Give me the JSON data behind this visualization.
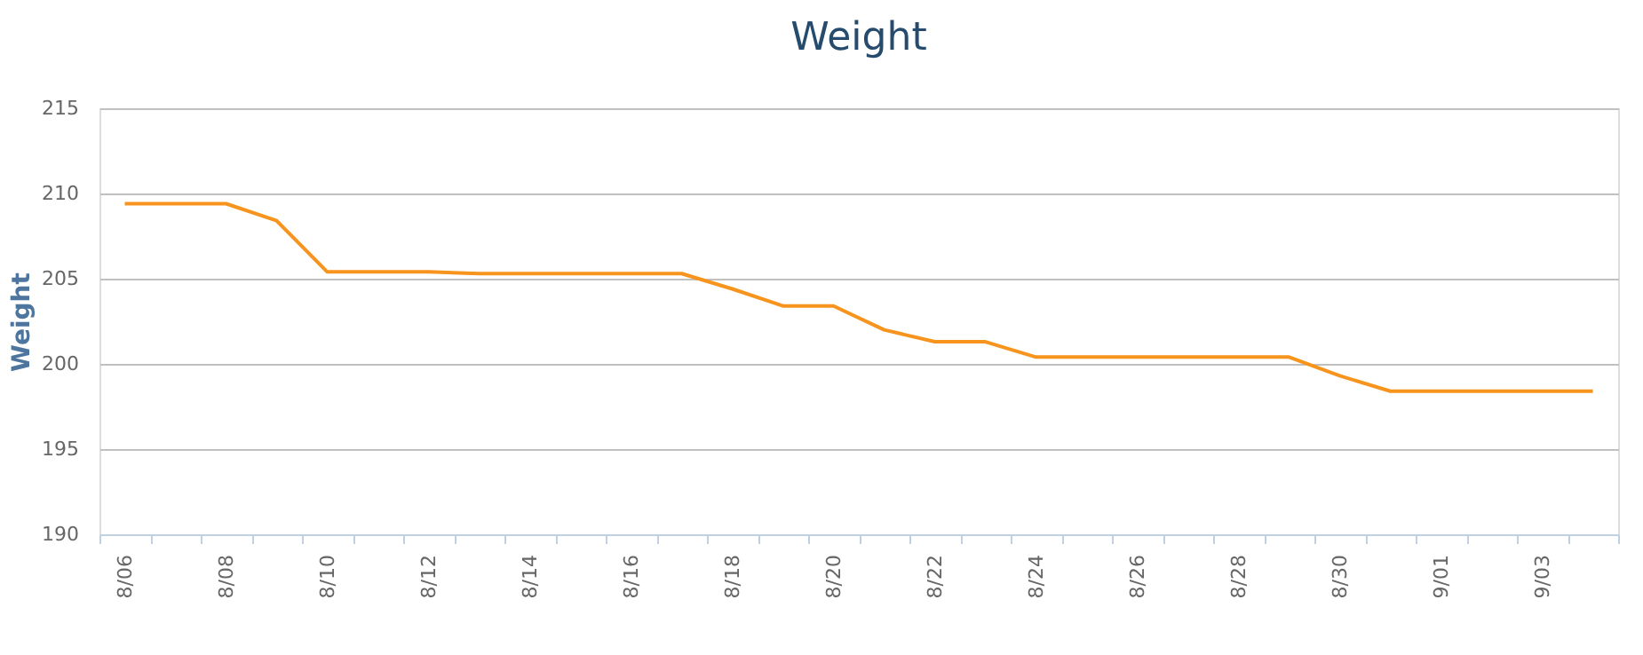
{
  "chart_data": {
    "type": "line",
    "title": "Weight",
    "ylabel": "Weight",
    "categories": [
      "8/06",
      null,
      "8/08",
      null,
      "8/10",
      null,
      "8/12",
      null,
      "8/14",
      null,
      "8/16",
      null,
      "8/18",
      null,
      "8/20",
      null,
      "8/22",
      null,
      "8/24",
      null,
      "8/26",
      null,
      "8/28",
      null,
      "8/30",
      null,
      "9/01",
      null,
      "9/03",
      null
    ],
    "series": [
      {
        "color": "#f7941d",
        "values": [
          209.4,
          209.4,
          209.4,
          208.4,
          205.4,
          205.4,
          205.4,
          205.3,
          205.3,
          205.3,
          205.3,
          205.3,
          204.4,
          203.4,
          203.4,
          202.0,
          201.3,
          201.3,
          200.4,
          200.4,
          200.4,
          200.4,
          200.4,
          200.4,
          199.3,
          198.4,
          198.4,
          198.4,
          198.4,
          198.4
        ]
      }
    ],
    "ylim": [
      190,
      215
    ],
    "yticks": [
      190,
      195,
      200,
      205,
      210,
      215
    ],
    "grid": "y",
    "marker": "none",
    "line_style": "solid",
    "legend": false
  }
}
